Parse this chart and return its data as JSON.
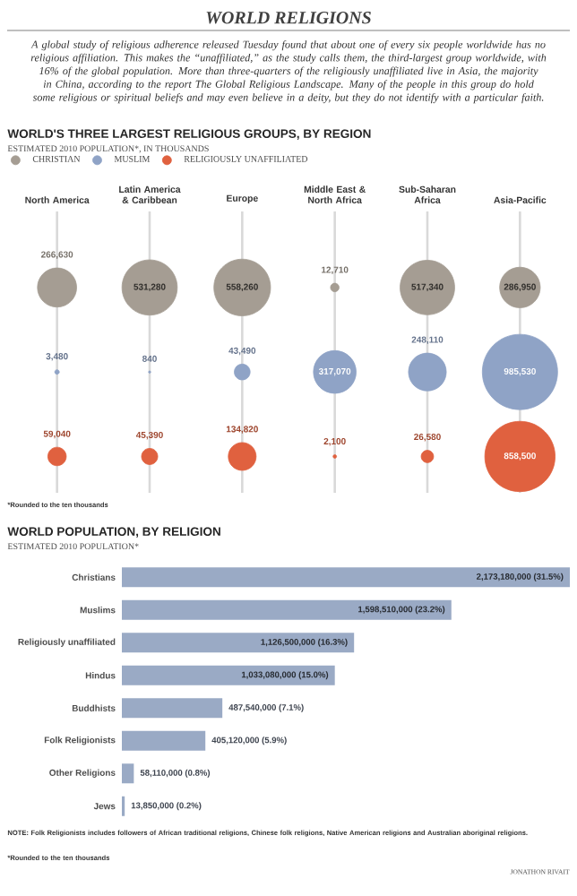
{
  "chart_data": [
    {
      "type": "other",
      "title": "WORLD RELIGIONS",
      "subtitle": "A global study of religious adherence released Tuesday found that about one of every six people worldwide has no religious affiliation. This makes the “unaffiliated,” as the study calls them, the third-largest group worldwide, with 16% of the global population. More than three-quarters of the religiously unaffiliated live in Asia, the majority in China, according to the report The Global Religious Landscape. Many of the people in this group do hold some religious or spiritual beliefs and may even believe in a deity, but they do not identify with a particular faith."
    },
    {
      "type": "other",
      "title": "WORLD'S THREE LARGEST RELIGIOUS GROUPS, BY REGION",
      "subtitle": "ESTIMATED 2010 POPULATION*, IN THOUSANDS",
      "categories": [
        "North America",
        "Latin America & Caribbean",
        "Europe",
        "Middle East & North Africa",
        "Sub-Saharan Africa",
        "Asia-Pacific"
      ],
      "series": [
        {
          "name": "CHRISTIAN",
          "color": "#a59d93",
          "values": [
            266630,
            531280,
            558260,
            12710,
            517340,
            286950
          ],
          "value_labels": [
            "266,630",
            "531,280",
            "558,260",
            "12,710",
            "517,340",
            "286,950"
          ]
        },
        {
          "name": "MUSLIM",
          "color": "#8fa3c6",
          "values": [
            3480,
            840,
            43490,
            317070,
            248110,
            985530
          ],
          "value_labels": [
            "3,480",
            "840",
            "43,490",
            "317,070",
            "248,110",
            "985,530"
          ]
        },
        {
          "name": "RELIGIOUSLY UNAFFILIATED",
          "color": "#e0613f",
          "values": [
            59040,
            45390,
            134820,
            2100,
            26580,
            858500
          ],
          "value_labels": [
            "59,040",
            "45,390",
            "134,820",
            "2,100",
            "26,580",
            "858,500"
          ]
        }
      ],
      "legend": "top left",
      "annotations": [
        "*Rounded to the ten thousands"
      ]
    },
    {
      "type": "bar",
      "orientation": "horizontal",
      "title": "WORLD POPULATION, BY RELIGION",
      "subtitle": "ESTIMATED 2010 POPULATION*",
      "categories": [
        "Christians",
        "Muslims",
        "Religiously unaffiliated",
        "Hindus",
        "Buddhists",
        "Folk Religionists",
        "Other Religions",
        "Jews"
      ],
      "values": [
        2173180000,
        1598510000,
        1126500000,
        1033080000,
        487540000,
        405120000,
        58110000,
        13850000
      ],
      "value_labels": [
        "2,173,180,000 (31.5%)",
        "1,598,510,000 (23.2%)",
        "1,126,500,000 (16.3%)",
        "1,033,080,000 (15.0%)",
        "487,540,000 (7.1%)",
        "405,120,000 (5.9%)",
        "58,110,000 (0.8%)",
        "13,850,000 (0.2%)"
      ],
      "color": "#9aaac5",
      "tick_labels": "y",
      "annotations": [
        "NOTE: Folk Religionists includes followers of African traditional religions, Chinese folk religions, Native American religions and Australian aboriginal religions.",
        "*Rounded to the ten thousands",
        "JONATHON RIVAIT"
      ]
    }
  ]
}
